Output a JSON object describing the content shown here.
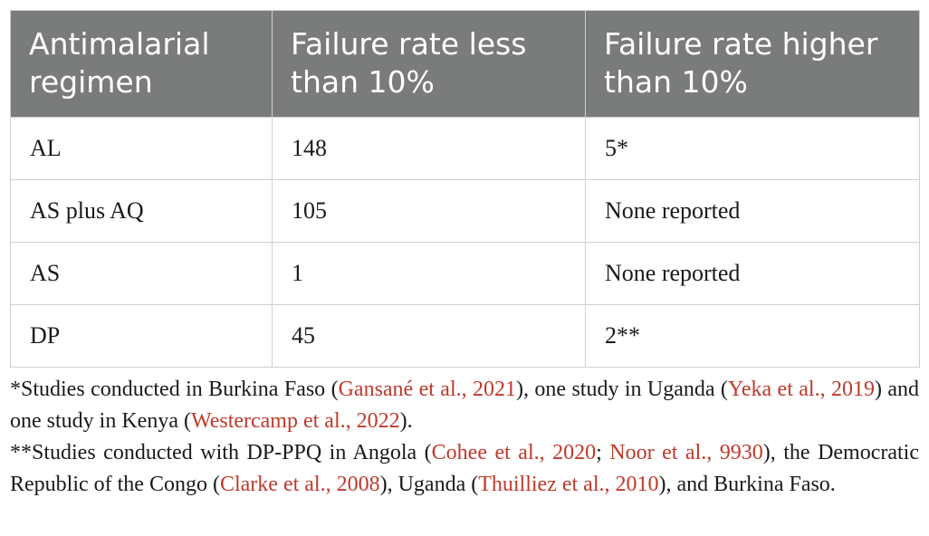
{
  "table": {
    "headers": [
      "Antimalarial regimen",
      "Failure rate less than 10%",
      "Failure rate higher than 10%"
    ],
    "rows": [
      [
        "AL",
        "148",
        "5*"
      ],
      [
        "AS plus AQ",
        "105",
        "None reported"
      ],
      [
        "AS",
        "1",
        "None reported"
      ],
      [
        "DP",
        "45",
        "2**"
      ]
    ]
  },
  "footnotes": {
    "note1": {
      "t1": "*Studies conducted in Burkina Faso (",
      "r1": "Gansané et al., 2021",
      "t2": "), one study in Uganda (",
      "r2": "Yeka et al., 2019",
      "t3": ") and one study in Kenya (",
      "r3": "Westercamp et al., 2022",
      "t4": ")."
    },
    "note2": {
      "t1": "**Studies conducted with DP-PPQ in Angola (",
      "r1": "Cohee et al., 2020",
      "t2": "; ",
      "r2": "Noor et al., 9930",
      "t3": "), the Democratic Republic of the Congo (",
      "r3": "Clarke et al., 2008",
      "t4": "), Uganda (",
      "r4": "Thuilliez et al., 2010",
      "t5": "), and Burkina Faso."
    }
  },
  "colors": {
    "header_bg": "#7a7b7b",
    "reference_link": "#c0392b",
    "border": "#cfcfcf"
  }
}
